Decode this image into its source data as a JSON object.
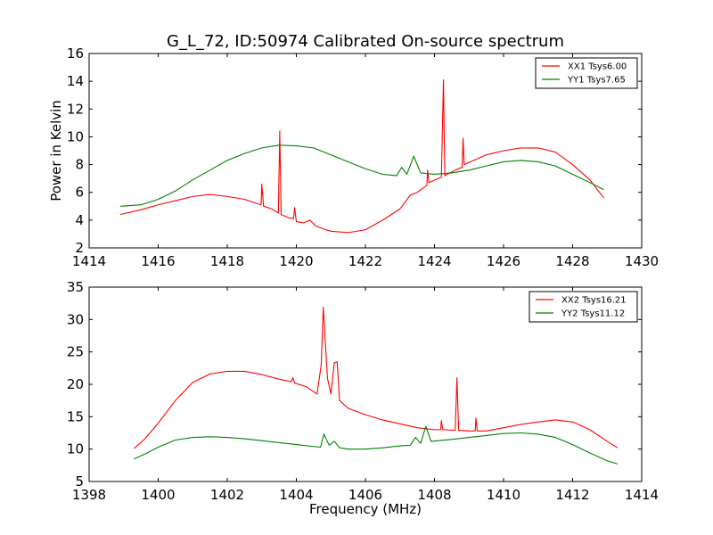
{
  "title": "G_L_72, ID:50974 Calibrated On-source spectrum",
  "chart_data": [
    {
      "type": "line",
      "ylabel": "Power in Kelvin",
      "xlabel": "",
      "xlim": [
        1414,
        1430
      ],
      "ylim": [
        2,
        16
      ],
      "xticks": [
        1414,
        1416,
        1418,
        1420,
        1422,
        1424,
        1426,
        1428,
        1430
      ],
      "yticks": [
        2,
        4,
        6,
        8,
        10,
        12,
        14,
        16
      ],
      "legend_position": "top-right",
      "grid": false,
      "series": [
        {
          "name": "XX1 Tsys6.00",
          "color": "#ff0000",
          "points": [
            [
              1414.9,
              4.4
            ],
            [
              1415.5,
              4.75
            ],
            [
              1416.0,
              5.1
            ],
            [
              1416.5,
              5.4
            ],
            [
              1417.0,
              5.7
            ],
            [
              1417.5,
              5.85
            ],
            [
              1418.0,
              5.7
            ],
            [
              1418.5,
              5.5
            ],
            [
              1418.98,
              5.1
            ],
            [
              1419.0,
              6.6
            ],
            [
              1419.05,
              5.0
            ],
            [
              1419.3,
              4.8
            ],
            [
              1419.48,
              4.5
            ],
            [
              1419.52,
              10.4
            ],
            [
              1419.56,
              4.4
            ],
            [
              1419.8,
              4.15
            ],
            [
              1419.92,
              4.1
            ],
            [
              1419.95,
              4.9
            ],
            [
              1420.0,
              3.9
            ],
            [
              1420.2,
              3.8
            ],
            [
              1420.4,
              4.0
            ],
            [
              1420.55,
              3.6
            ],
            [
              1420.8,
              3.35
            ],
            [
              1421.0,
              3.2
            ],
            [
              1421.5,
              3.1
            ],
            [
              1422.0,
              3.3
            ],
            [
              1422.5,
              4.0
            ],
            [
              1423.0,
              4.8
            ],
            [
              1423.3,
              5.8
            ],
            [
              1423.5,
              6.0
            ],
            [
              1423.78,
              6.5
            ],
            [
              1423.8,
              7.6
            ],
            [
              1423.84,
              6.7
            ],
            [
              1424.2,
              7.1
            ],
            [
              1424.26,
              14.1
            ],
            [
              1424.3,
              7.2
            ],
            [
              1424.6,
              7.6
            ],
            [
              1424.8,
              7.8
            ],
            [
              1424.83,
              9.9
            ],
            [
              1424.86,
              8.0
            ],
            [
              1425.5,
              8.7
            ],
            [
              1426.0,
              9.0
            ],
            [
              1426.5,
              9.2
            ],
            [
              1427.0,
              9.2
            ],
            [
              1427.5,
              8.9
            ],
            [
              1428.0,
              8.0
            ],
            [
              1428.5,
              6.9
            ],
            [
              1428.9,
              5.6
            ]
          ]
        },
        {
          "name": "YY1 Tsys7.65",
          "color": "#008000",
          "points": [
            [
              1414.9,
              5.0
            ],
            [
              1415.5,
              5.1
            ],
            [
              1416.0,
              5.5
            ],
            [
              1416.5,
              6.1
            ],
            [
              1417.0,
              6.9
            ],
            [
              1417.5,
              7.6
            ],
            [
              1418.0,
              8.3
            ],
            [
              1418.5,
              8.8
            ],
            [
              1419.0,
              9.2
            ],
            [
              1419.5,
              9.4
            ],
            [
              1420.0,
              9.35
            ],
            [
              1420.5,
              9.2
            ],
            [
              1421.0,
              8.7
            ],
            [
              1421.5,
              8.2
            ],
            [
              1422.0,
              7.7
            ],
            [
              1422.5,
              7.3
            ],
            [
              1422.9,
              7.2
            ],
            [
              1423.05,
              7.8
            ],
            [
              1423.2,
              7.3
            ],
            [
              1423.4,
              8.6
            ],
            [
              1423.6,
              7.4
            ],
            [
              1424.0,
              7.3
            ],
            [
              1424.5,
              7.4
            ],
            [
              1425.0,
              7.6
            ],
            [
              1425.5,
              7.9
            ],
            [
              1426.0,
              8.2
            ],
            [
              1426.5,
              8.3
            ],
            [
              1427.0,
              8.2
            ],
            [
              1427.5,
              7.9
            ],
            [
              1428.0,
              7.3
            ],
            [
              1428.5,
              6.7
            ],
            [
              1428.9,
              6.2
            ]
          ]
        }
      ]
    },
    {
      "type": "line",
      "ylabel": "",
      "xlabel": "Frequency (MHz)",
      "xlim": [
        1398,
        1414
      ],
      "ylim": [
        5,
        35
      ],
      "xticks": [
        1398,
        1400,
        1402,
        1404,
        1406,
        1408,
        1410,
        1412,
        1414
      ],
      "yticks": [
        5,
        10,
        15,
        20,
        25,
        30,
        35
      ],
      "legend_position": "top-right",
      "grid": false,
      "series": [
        {
          "name": "XX2 Tsys16.21",
          "color": "#ff0000",
          "points": [
            [
              1399.3,
              10.1
            ],
            [
              1399.6,
              11.5
            ],
            [
              1400.0,
              14.0
            ],
            [
              1400.5,
              17.5
            ],
            [
              1401.0,
              20.3
            ],
            [
              1401.5,
              21.6
            ],
            [
              1402.0,
              22.0
            ],
            [
              1402.5,
              22.0
            ],
            [
              1403.0,
              21.5
            ],
            [
              1403.5,
              20.8
            ],
            [
              1403.85,
              20.4
            ],
            [
              1403.9,
              21.0
            ],
            [
              1403.95,
              20.2
            ],
            [
              1404.3,
              19.6
            ],
            [
              1404.6,
              18.5
            ],
            [
              1404.72,
              23.0
            ],
            [
              1404.78,
              31.9
            ],
            [
              1404.84,
              26.5
            ],
            [
              1404.9,
              21.0
            ],
            [
              1405.0,
              18.5
            ],
            [
              1405.1,
              23.3
            ],
            [
              1405.18,
              23.5
            ],
            [
              1405.25,
              17.5
            ],
            [
              1405.5,
              16.3
            ],
            [
              1406.0,
              15.3
            ],
            [
              1406.5,
              14.5
            ],
            [
              1407.0,
              13.9
            ],
            [
              1407.5,
              13.3
            ],
            [
              1408.0,
              13.0
            ],
            [
              1408.18,
              13.0
            ],
            [
              1408.2,
              14.4
            ],
            [
              1408.24,
              13.0
            ],
            [
              1408.6,
              12.9
            ],
            [
              1408.65,
              21.0
            ],
            [
              1408.7,
              12.9
            ],
            [
              1409.0,
              12.8
            ],
            [
              1409.18,
              12.8
            ],
            [
              1409.2,
              14.8
            ],
            [
              1409.24,
              12.8
            ],
            [
              1409.5,
              12.8
            ],
            [
              1410.0,
              13.3
            ],
            [
              1410.5,
              13.8
            ],
            [
              1411.0,
              14.2
            ],
            [
              1411.5,
              14.5
            ],
            [
              1412.0,
              14.2
            ],
            [
              1412.5,
              13.0
            ],
            [
              1413.0,
              11.2
            ],
            [
              1413.3,
              10.2
            ]
          ]
        },
        {
          "name": "YY2 Tsys11.12",
          "color": "#008000",
          "points": [
            [
              1399.3,
              8.5
            ],
            [
              1399.6,
              9.2
            ],
            [
              1400.0,
              10.3
            ],
            [
              1400.5,
              11.4
            ],
            [
              1401.0,
              11.8
            ],
            [
              1401.5,
              11.9
            ],
            [
              1402.0,
              11.8
            ],
            [
              1402.5,
              11.6
            ],
            [
              1403.0,
              11.3
            ],
            [
              1403.5,
              11.0
            ],
            [
              1404.0,
              10.7
            ],
            [
              1404.5,
              10.4
            ],
            [
              1404.7,
              10.3
            ],
            [
              1404.8,
              12.3
            ],
            [
              1404.95,
              10.6
            ],
            [
              1405.1,
              11.2
            ],
            [
              1405.25,
              10.2
            ],
            [
              1405.5,
              10.0
            ],
            [
              1406.0,
              10.0
            ],
            [
              1406.5,
              10.2
            ],
            [
              1407.0,
              10.5
            ],
            [
              1407.3,
              10.6
            ],
            [
              1407.45,
              11.8
            ],
            [
              1407.6,
              10.9
            ],
            [
              1407.75,
              13.5
            ],
            [
              1407.9,
              11.2
            ],
            [
              1408.5,
              11.5
            ],
            [
              1409.0,
              11.8
            ],
            [
              1409.5,
              12.1
            ],
            [
              1410.0,
              12.4
            ],
            [
              1410.5,
              12.5
            ],
            [
              1411.0,
              12.3
            ],
            [
              1411.5,
              11.8
            ],
            [
              1412.0,
              10.7
            ],
            [
              1412.5,
              9.4
            ],
            [
              1413.0,
              8.2
            ],
            [
              1413.3,
              7.7
            ]
          ]
        }
      ]
    }
  ]
}
